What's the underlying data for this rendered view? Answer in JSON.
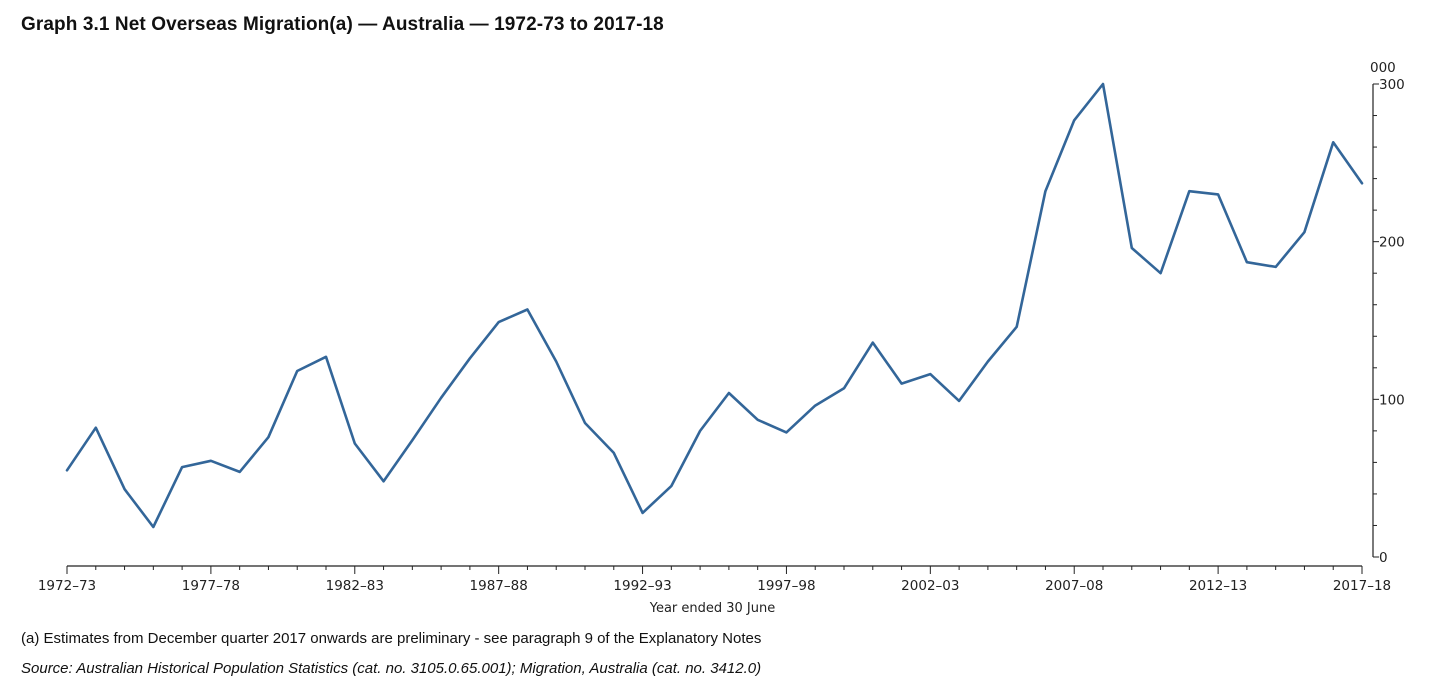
{
  "title": "Graph 3.1 Net Overseas Migration(a) — Australia — 1972-73 to 2017-18",
  "footnote": "(a) Estimates from December quarter 2017 onwards are preliminary - see paragraph 9 of the Explanatory Notes",
  "source": "Source: Australian Historical Population Statistics (cat. no. 3105.0.65.001); Migration, Australia (cat. no. 3412.0)",
  "colors": {
    "line": "#336699",
    "axis": "#222222"
  },
  "chart_data": {
    "type": "line",
    "title": "Graph 3.1 Net Overseas Migration(a) — Australia — 1972-73 to 2017-18",
    "xlabel": "Year ended 30 June",
    "ylabel": "000",
    "ylim": [
      0,
      300
    ],
    "yticks": [
      0,
      100,
      200,
      300
    ],
    "y_axis_side": "right",
    "grid": false,
    "legend": "none",
    "x_tick_labels": [
      "1972–73",
      "1977–78",
      "1982–83",
      "1987–88",
      "1992–93",
      "1997–98",
      "2002–03",
      "2007–08",
      "2012–13",
      "2017–18"
    ],
    "x": [
      "1972-73",
      "1973-74",
      "1974-75",
      "1975-76",
      "1976-77",
      "1977-78",
      "1978-79",
      "1979-80",
      "1980-81",
      "1981-82",
      "1982-83",
      "1983-84",
      "1984-85",
      "1985-86",
      "1986-87",
      "1987-88",
      "1988-89",
      "1989-90",
      "1990-91",
      "1991-92",
      "1992-93",
      "1993-94",
      "1994-95",
      "1995-96",
      "1996-97",
      "1997-98",
      "1998-99",
      "1999-00",
      "2000-01",
      "2001-02",
      "2002-03",
      "2003-04",
      "2004-05",
      "2005-06",
      "2006-07",
      "2007-08",
      "2008-09",
      "2009-10",
      "2010-11",
      "2011-12",
      "2012-13",
      "2013-14",
      "2014-15",
      "2015-16",
      "2016-17",
      "2017-18"
    ],
    "series": [
      {
        "values": [
          55,
          82,
          43,
          19,
          57,
          61,
          54,
          76,
          118,
          127,
          72,
          48,
          74,
          101,
          126,
          149,
          157,
          124,
          85,
          66,
          28,
          45,
          80,
          104,
          87,
          79,
          96,
          107,
          136,
          110,
          116,
          99,
          124,
          146,
          232,
          277,
          300,
          196,
          180,
          232,
          230,
          187,
          184,
          206,
          263,
          237
        ]
      }
    ]
  }
}
